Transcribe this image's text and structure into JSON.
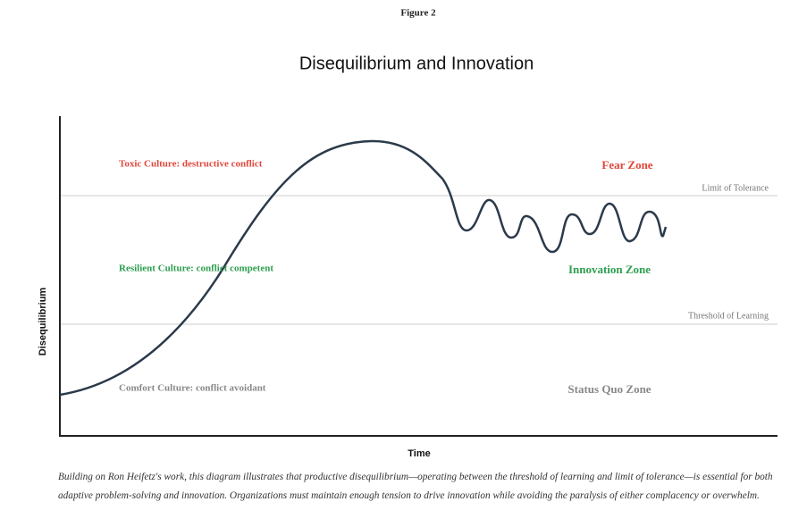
{
  "figure_label": "Figure 2",
  "title": "Disequilibrium and Innovation",
  "axes": {
    "x_label": "Time",
    "y_label": "Disequilibrium"
  },
  "thresholds": [
    {
      "label": "Limit of Tolerance"
    },
    {
      "label": "Threshold of Learning"
    }
  ],
  "cultures": [
    {
      "label": "Toxic Culture: destructive conflict"
    },
    {
      "label": "Resilient Culture: conflict competent"
    },
    {
      "label": "Comfort Culture: conflict avoidant"
    }
  ],
  "zones": [
    {
      "label": "Fear Zone"
    },
    {
      "label": "Innovation Zone"
    },
    {
      "label": "Status Quo Zone"
    }
  ],
  "caption": "Building on Ron Heifetz's work, this diagram illustrates that productive disequilibrium—operating between the threshold of learning and limit of tolerance—is essential for both adaptive problem-solving and innovation. Organizations must maintain enough tension to drive innovation while avoiding the paralysis of either complacency or overwhelm."
}
